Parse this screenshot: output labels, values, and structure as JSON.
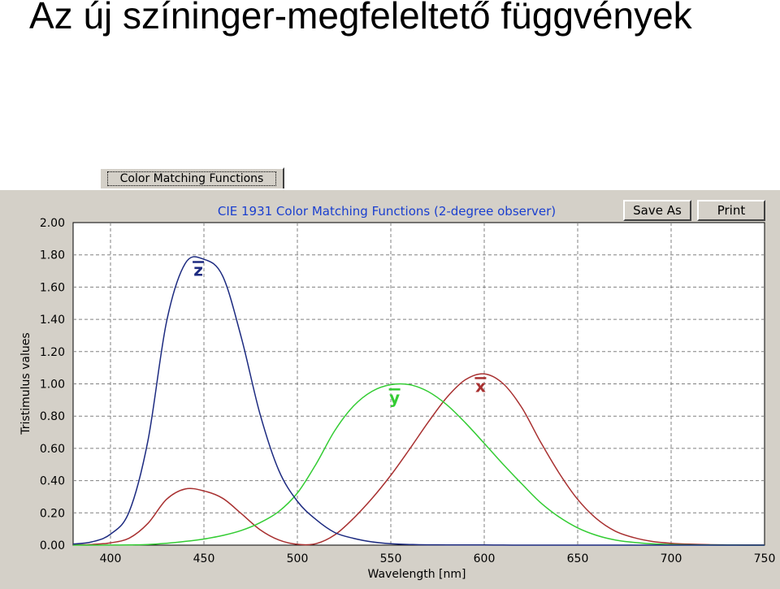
{
  "slide": {
    "title": "Az új színinger-megfeleltető függvények"
  },
  "window": {
    "tab_label": "Color Matching Functions",
    "save_label": "Save As",
    "print_label": "Print"
  },
  "colors": {
    "panel": "#d4d0c8",
    "title_text": "#1a3fcf",
    "x_bar": "#a83030",
    "y_bar": "#33cc33",
    "z_bar": "#1c2a80",
    "grid": "#808080"
  },
  "chart_data": {
    "type": "line",
    "title": "CIE 1931 Color Matching Functions (2-degree observer)",
    "xlabel": "Wavelength [nm]",
    "ylabel": "Tristimulus values",
    "xlim": [
      380,
      750
    ],
    "ylim": [
      0,
      2
    ],
    "xticks": [
      "400",
      "450",
      "500",
      "550",
      "600",
      "650",
      "700",
      "750"
    ],
    "yticks": [
      "0.00",
      "0.20",
      "0.40",
      "0.60",
      "0.80",
      "1.00",
      "1.20",
      "1.40",
      "1.60",
      "1.80",
      "2.00"
    ],
    "grid": true,
    "x": [
      380,
      390,
      400,
      410,
      420,
      430,
      440,
      450,
      460,
      470,
      480,
      490,
      500,
      510,
      520,
      530,
      540,
      550,
      560,
      570,
      580,
      590,
      600,
      610,
      620,
      630,
      640,
      650,
      660,
      670,
      680,
      690,
      700,
      710,
      720,
      730,
      740,
      750
    ],
    "series": [
      {
        "name": "x̄",
        "values": [
          0.0014,
          0.0042,
          0.0143,
          0.0435,
          0.1344,
          0.2839,
          0.3483,
          0.3362,
          0.2908,
          0.1954,
          0.0956,
          0.032,
          0.0049,
          0.0093,
          0.0633,
          0.1655,
          0.2904,
          0.4334,
          0.5945,
          0.7621,
          0.9163,
          1.0263,
          1.0622,
          1.0026,
          0.8544,
          0.6424,
          0.4479,
          0.2835,
          0.1649,
          0.0874,
          0.0468,
          0.0227,
          0.0114,
          0.0058,
          0.0029,
          0.0014,
          0.0007,
          0.0003
        ]
      },
      {
        "name": "ȳ",
        "values": [
          0.0,
          0.0001,
          0.0004,
          0.0012,
          0.004,
          0.0116,
          0.023,
          0.038,
          0.06,
          0.091,
          0.139,
          0.208,
          0.323,
          0.503,
          0.71,
          0.862,
          0.954,
          0.995,
          0.995,
          0.952,
          0.87,
          0.757,
          0.631,
          0.503,
          0.381,
          0.265,
          0.175,
          0.107,
          0.061,
          0.032,
          0.017,
          0.0082,
          0.0041,
          0.0021,
          0.001,
          0.0005,
          0.0002,
          0.0001
        ]
      },
      {
        "name": "z̄",
        "values": [
          0.0065,
          0.0201,
          0.0679,
          0.2074,
          0.6456,
          1.3856,
          1.7471,
          1.7721,
          1.6692,
          1.2876,
          0.813,
          0.4652,
          0.272,
          0.1582,
          0.0782,
          0.0422,
          0.0203,
          0.0087,
          0.0039,
          0.0021,
          0.0017,
          0.0011,
          0.0008,
          0.0003,
          0.0002,
          0.0,
          0.0,
          0.0,
          0.0,
          0.0,
          0.0,
          0.0,
          0.0,
          0.0,
          0.0,
          0.0,
          0.0,
          0.0
        ]
      }
    ],
    "annotations": [
      {
        "text": "z",
        "x": 447,
        "y": 1.67,
        "series": "z̄"
      },
      {
        "text": "y",
        "x": 552,
        "y": 0.88,
        "series": "ȳ"
      },
      {
        "text": "x",
        "x": 598,
        "y": 0.95,
        "series": "x̄"
      }
    ]
  }
}
